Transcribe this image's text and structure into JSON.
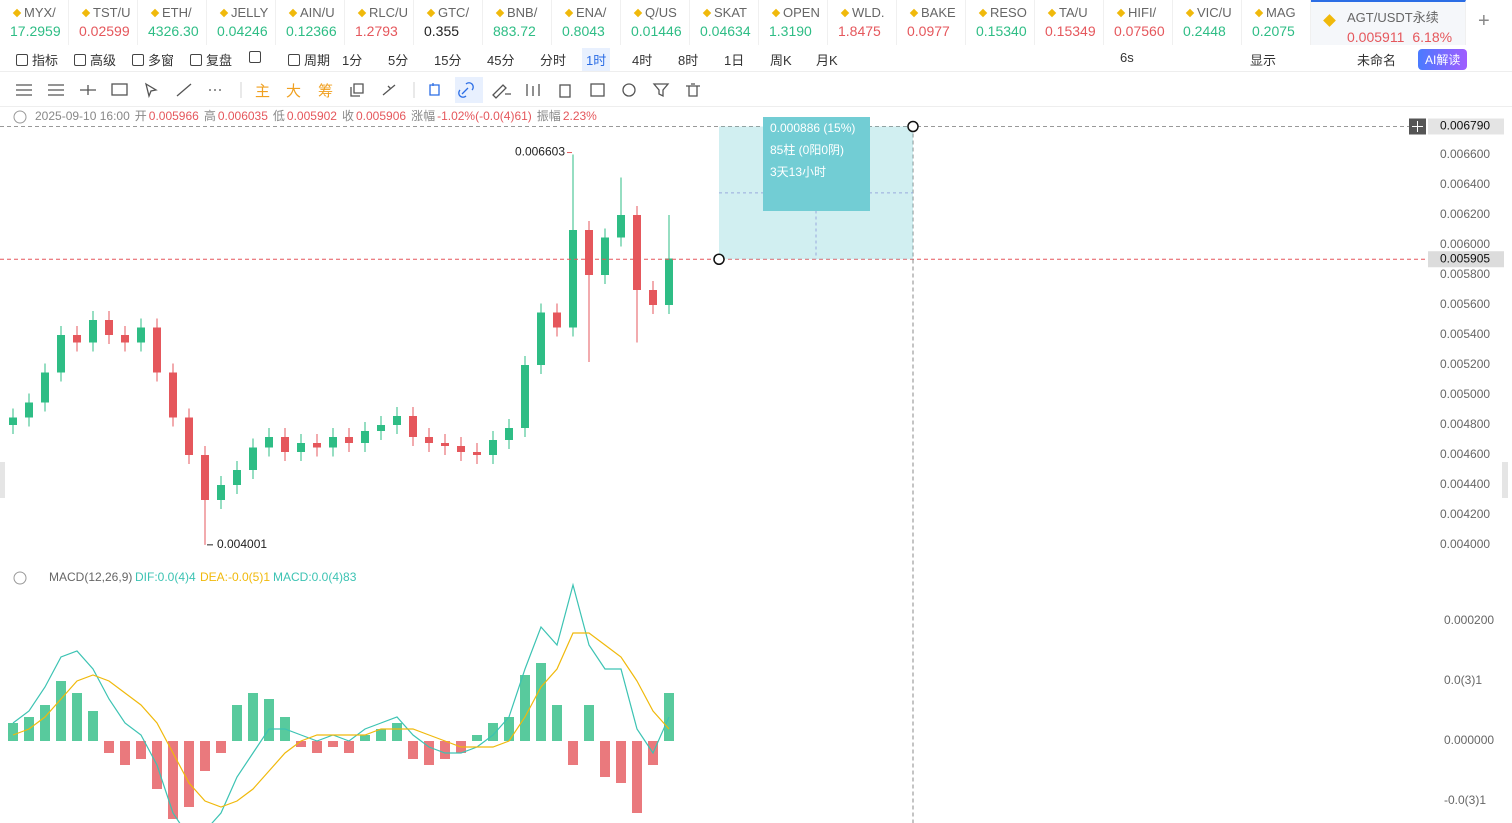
{
  "tickers": [
    {
      "symbol": "MYX/",
      "price": "17.2959",
      "color": "#2ebd85"
    },
    {
      "symbol": "TST/U",
      "price": "0.02599",
      "color": "#e5575c"
    },
    {
      "symbol": "ETH/",
      "price": "4326.30",
      "color": "#2ebd85"
    },
    {
      "symbol": "JELLY",
      "price": "0.04246",
      "color": "#2ebd85"
    },
    {
      "symbol": "AIN/U",
      "price": "0.12366",
      "color": "#2ebd85"
    },
    {
      "symbol": "RLC/U",
      "price": "1.2793",
      "color": "#e5575c"
    },
    {
      "symbol": "GTC/",
      "price": "0.355",
      "color": "#222222"
    },
    {
      "symbol": "BNB/",
      "price": "883.72",
      "color": "#2ebd85"
    },
    {
      "symbol": "ENA/",
      "price": "0.8043",
      "color": "#2ebd85"
    },
    {
      "symbol": "Q/US",
      "price": "0.01446",
      "color": "#2ebd85"
    },
    {
      "symbol": "SKAT",
      "price": "0.04634",
      "color": "#2ebd85"
    },
    {
      "symbol": "OPEN",
      "price": "1.3190",
      "color": "#2ebd85"
    },
    {
      "symbol": "WLD.",
      "price": "1.8475",
      "color": "#e5575c"
    },
    {
      "symbol": "BAKE",
      "price": "0.0977",
      "color": "#e5575c"
    },
    {
      "symbol": "RESO",
      "price": "0.15340",
      "color": "#2ebd85"
    },
    {
      "symbol": "TA/U",
      "price": "0.15349",
      "color": "#e5575c"
    },
    {
      "symbol": "HIFI/",
      "price": "0.07560",
      "color": "#e5575c"
    },
    {
      "symbol": "VIC/U",
      "price": "0.2448",
      "color": "#2ebd85"
    },
    {
      "symbol": "MAG",
      "price": "0.2075",
      "color": "#2ebd85"
    }
  ],
  "active_ticker": {
    "symbol": "AGT/USDT永续",
    "price": "0.005911",
    "change": "6.18%"
  },
  "toolbar": {
    "left": [
      "指标",
      "高级",
      "多窗",
      "复盘",
      "周期"
    ],
    "periods": [
      "1分",
      "5分",
      "15分",
      "45分",
      "分时",
      "1时",
      "4时",
      "8时",
      "1日",
      "周K",
      "月K"
    ],
    "active_period": 5,
    "right": [
      "6s",
      "显示",
      "未命名"
    ],
    "ai_button": "AI解读"
  },
  "drawing_tools": [
    "主",
    "大",
    "筹"
  ],
  "info": {
    "date": "2025-09-10 16:00",
    "fields": [
      {
        "label": "开",
        "value": "0.005966"
      },
      {
        "label": "高",
        "value": "0.006035"
      },
      {
        "label": "低",
        "value": "0.005902"
      },
      {
        "label": "收",
        "value": "0.005906"
      },
      {
        "label": "涨幅",
        "value": "-1.02%(-0.0(4)61)"
      },
      {
        "label": "振幅",
        "value": "2.23%"
      }
    ]
  },
  "chart_data": [
    {
      "type": "candlestick",
      "up_color": "#2ebd85",
      "down_color": "#e5575c",
      "open": [
        0.0048,
        0.00485,
        0.00495,
        0.00515,
        0.0054,
        0.00535,
        0.0055,
        0.0054,
        0.00535,
        0.00545,
        0.00515,
        0.00485,
        0.0046,
        0.0043,
        0.0044,
        0.0045,
        0.00465,
        0.00472,
        0.00462,
        0.00468,
        0.00465,
        0.00472,
        0.00468,
        0.00476,
        0.0048,
        0.00486,
        0.00472,
        0.00468,
        0.00466,
        0.00462,
        0.0046,
        0.0047,
        0.00478,
        0.0052,
        0.00555,
        0.00545,
        0.0061,
        0.0058,
        0.00605,
        0.0062,
        0.0057,
        0.0056
      ],
      "high": [
        0.00491,
        0.00501,
        0.00521,
        0.00546,
        0.00546,
        0.00556,
        0.00556,
        0.00546,
        0.00551,
        0.00551,
        0.00521,
        0.00491,
        0.00466,
        0.00446,
        0.00456,
        0.00471,
        0.00478,
        0.00478,
        0.00474,
        0.00474,
        0.00478,
        0.00478,
        0.00482,
        0.00486,
        0.00492,
        0.00492,
        0.00478,
        0.00474,
        0.00472,
        0.00468,
        0.00476,
        0.00484,
        0.00526,
        0.00561,
        0.00561,
        0.006603,
        0.00616,
        0.00611,
        0.00645,
        0.00626,
        0.00576,
        0.0062
      ],
      "low": [
        0.00474,
        0.00479,
        0.00489,
        0.00509,
        0.00529,
        0.00529,
        0.00534,
        0.00529,
        0.00529,
        0.00509,
        0.00479,
        0.00454,
        0.004001,
        0.00424,
        0.00434,
        0.00444,
        0.00459,
        0.00456,
        0.00456,
        0.00459,
        0.00459,
        0.00462,
        0.00462,
        0.0047,
        0.00474,
        0.00466,
        0.00462,
        0.0046,
        0.00456,
        0.00454,
        0.00454,
        0.00464,
        0.00472,
        0.00514,
        0.00539,
        0.00539,
        0.00522,
        0.00574,
        0.00599,
        0.00535,
        0.00554,
        0.00554
      ],
      "close": [
        0.00485,
        0.00495,
        0.00515,
        0.0054,
        0.00535,
        0.0055,
        0.0054,
        0.00535,
        0.00545,
        0.00515,
        0.00485,
        0.0046,
        0.0043,
        0.0044,
        0.0045,
        0.00465,
        0.00472,
        0.00462,
        0.00468,
        0.00465,
        0.00472,
        0.00468,
        0.00476,
        0.0048,
        0.00486,
        0.00472,
        0.00468,
        0.00466,
        0.00462,
        0.0046,
        0.0047,
        0.00478,
        0.0052,
        0.00555,
        0.00545,
        0.0061,
        0.0058,
        0.00605,
        0.0062,
        0.0057,
        0.0056,
        0.00591
      ],
      "ylim": [
        0.00389,
        0.00692
      ],
      "yticks": [
        {
          "value": 0.0066,
          "label": "0.006600"
        },
        {
          "value": 0.0064,
          "label": "0.006400"
        },
        {
          "value": 0.0062,
          "label": "0.006200"
        },
        {
          "value": 0.006,
          "label": "0.006000"
        },
        {
          "value": 0.0058,
          "label": "0.005800"
        },
        {
          "value": 0.0056,
          "label": "0.005600"
        },
        {
          "value": 0.0054,
          "label": "0.005400"
        },
        {
          "value": 0.0052,
          "label": "0.005200"
        },
        {
          "value": 0.005,
          "label": "0.005000"
        },
        {
          "value": 0.0048,
          "label": "0.004800"
        },
        {
          "value": 0.0046,
          "label": "0.004600"
        },
        {
          "value": 0.0044,
          "label": "0.004400"
        },
        {
          "value": 0.0042,
          "label": "0.004200"
        },
        {
          "value": 0.004,
          "label": "0.004000"
        }
      ],
      "last_price": 0.005905,
      "high_mark": 35,
      "low_mark": 12,
      "measure": {
        "top": {
          "value": 0.00679,
          "label": "0.006790"
        },
        "texts": [
          "0.000886 (15%)",
          "85柱 (0阳0阴)",
          "3天13小时"
        ]
      }
    },
    {
      "type": "macd",
      "title": "MACD(12,26,9)",
      "series": [
        {
          "name": "DIF:0.0(4)4",
          "color": "#3cc3b3",
          "values": [
            3e-05,
            5e-05,
            9e-05,
            0.00014,
            0.00015,
            0.00012,
            7e-05,
            3e-05,
            1e-05,
            -4e-05,
            -0.00012,
            -0.00016,
            -0.00015,
            -0.00012,
            -6e-05,
            -2e-05,
            2e-05,
            2e-05,
            1e-05,
            0,
            1e-05,
            0,
            2e-05,
            3e-05,
            4e-05,
            1e-05,
            -1e-05,
            -2e-05,
            -2e-05,
            -1e-05,
            1e-05,
            4e-05,
            0.00012,
            0.00019,
            0.00016,
            0.00026,
            0.00016,
            0.00012,
            0.00012,
            2e-05,
            -2e-05,
            4e-05
          ]
        },
        {
          "name": "DEA:-0.0(5)1",
          "color": "#f0b90b",
          "values": [
            1e-05,
            2e-05,
            4e-05,
            7e-05,
            0.0001,
            0.00011,
            0.0001,
            8e-05,
            6e-05,
            3e-05,
            -2e-05,
            -7e-05,
            -0.0001,
            -0.00011,
            -0.0001,
            -8e-05,
            -5e-05,
            -2e-05,
            0,
            1e-05,
            1e-05,
            1e-05,
            1e-05,
            2e-05,
            2e-05,
            2e-05,
            1e-05,
            0,
            -1e-05,
            -1e-05,
            -1e-05,
            0,
            4e-05,
            9e-05,
            0.00012,
            0.00018,
            0.00018,
            0.00016,
            0.00014,
            0.0001,
            5e-05,
            2e-05
          ]
        },
        {
          "name": "MACD:0.0(4)83",
          "color": "#2ebd85",
          "down_color": "#e5575c",
          "values": [
            3e-05,
            4e-05,
            6e-05,
            0.0001,
            8e-05,
            5e-05,
            -2e-05,
            -4e-05,
            -3e-05,
            -8e-05,
            -0.00013,
            -0.00011,
            -5e-05,
            -2e-05,
            6e-05,
            8e-05,
            7e-05,
            4e-05,
            -1e-05,
            -2e-05,
            -1e-05,
            -2e-05,
            1e-05,
            2e-05,
            3e-05,
            -3e-05,
            -4e-05,
            -3e-05,
            -2e-05,
            1e-05,
            3e-05,
            4e-05,
            0.00011,
            0.00013,
            6e-05,
            -4e-05,
            6e-05,
            -6e-05,
            -7e-05,
            -0.00012,
            -4e-05,
            8e-05
          ]
        }
      ],
      "ylim": [
        -0.00014,
        0.00029
      ],
      "yticks": [
        {
          "value": 0.0002,
          "label": "0.000200"
        },
        {
          "value": 0.0001,
          "label": "0.0(3)1"
        },
        {
          "value": 0,
          "label": "0.000000"
        },
        {
          "value": -0.0001,
          "label": "-0.0(3)1"
        }
      ]
    }
  ]
}
